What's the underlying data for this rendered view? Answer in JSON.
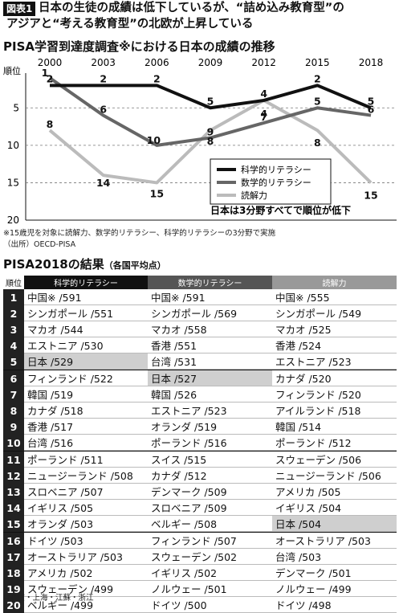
{
  "header": {
    "tag": "図表1",
    "line1": "日本の生徒の成績は低下しているが、“詰め込み教育型”の",
    "line2": "アジアと“考える教育型”の北欧が上昇している"
  },
  "chart_data": {
    "type": "line",
    "title": "PISA学習到達度調査※における日本の成績の推移",
    "ylabel": "順位",
    "ylim": [
      1,
      20
    ],
    "y_reversed": true,
    "yticks": [
      "1",
      "5",
      "10",
      "15",
      "20"
    ],
    "x": [
      "2000",
      "2003",
      "2006",
      "2009",
      "2012",
      "2015",
      "2018"
    ],
    "series": [
      {
        "name": "科学的リテラシー",
        "color": "#111111",
        "values": [
          2,
          2,
          2,
          5,
          4,
          2,
          5
        ],
        "labels": [
          "2",
          "2",
          "2",
          "5",
          "4",
          "2",
          "5"
        ]
      },
      {
        "name": "数学的リテラシー",
        "color": "#666666",
        "values": [
          1,
          6,
          10,
          9,
          7,
          5,
          6
        ],
        "labels": [
          "1",
          "6",
          "10",
          "9",
          "7",
          "5",
          "6"
        ]
      },
      {
        "name": "読解力",
        "color": "#bbbbbb",
        "values": [
          8,
          14,
          15,
          8,
          4,
          8,
          15
        ],
        "labels": [
          "8",
          "14",
          "15",
          "8",
          "4",
          "8",
          "15"
        ]
      }
    ],
    "annotation": "日本は3分野すべてで順位が低下",
    "legend_position": "bottom-right"
  },
  "notes": {
    "n1": "※15歳児を対象に読解力、数学的リテラシー、科学的リテラシーの3分野で実施",
    "n2": "（出所）OECD-PISA"
  },
  "table": {
    "title": "PISA2018の結果",
    "subtitle": "（各国平均点）",
    "col_rank": "順位",
    "col_sci": "科学的リテラシー",
    "col_math": "数学的リテラシー",
    "col_read": "読解力",
    "rows": [
      {
        "rank": "1",
        "sci": "中国※ /591",
        "math": "中国※ /591",
        "read": "中国※ /555"
      },
      {
        "rank": "2",
        "sci": "シンガポール /551",
        "math": "シンガポール /569",
        "read": "シンガポール /549"
      },
      {
        "rank": "3",
        "sci": "マカオ /544",
        "math": "マカオ /558",
        "read": "マカオ /525"
      },
      {
        "rank": "4",
        "sci": "エストニア /530",
        "math": "香港 /551",
        "read": "香港 /524"
      },
      {
        "rank": "5",
        "sci": "日本 /529",
        "math": "台湾 /531",
        "read": "エストニア /523"
      },
      {
        "rank": "6",
        "sci": "フィンランド /522",
        "math": "日本 /527",
        "read": "カナダ /520"
      },
      {
        "rank": "7",
        "sci": "韓国 /519",
        "math": "韓国 /526",
        "read": "フィンランド /520"
      },
      {
        "rank": "8",
        "sci": "カナダ /518",
        "math": "エストニア /523",
        "read": "アイルランド /518"
      },
      {
        "rank": "9",
        "sci": "香港 /517",
        "math": "オランダ /519",
        "read": "韓国 /514"
      },
      {
        "rank": "10",
        "sci": "台湾 /516",
        "math": "ポーランド /516",
        "read": "ポーランド /512"
      },
      {
        "rank": "11",
        "sci": "ポーランド /511",
        "math": "スイス /515",
        "read": "スウェーデン /506"
      },
      {
        "rank": "12",
        "sci": "ニュージーランド /508",
        "math": "カナダ /512",
        "read": "ニュージーランド /506"
      },
      {
        "rank": "13",
        "sci": "スロベニア /507",
        "math": "デンマーク /509",
        "read": "アメリカ /505"
      },
      {
        "rank": "14",
        "sci": "イギリス /505",
        "math": "スロベニア /509",
        "read": "イギリス /504"
      },
      {
        "rank": "15",
        "sci": "オランダ /503",
        "math": "ベルギー /508",
        "read": "日本 /504"
      },
      {
        "rank": "16",
        "sci": "ドイツ /503",
        "math": "フィンランド /507",
        "read": "オーストラリア /503"
      },
      {
        "rank": "17",
        "sci": "オーストラリア /503",
        "math": "スウェーデン /502",
        "read": "台湾 /503"
      },
      {
        "rank": "18",
        "sci": "アメリカ /502",
        "math": "イギリス /502",
        "read": "デンマーク /501"
      },
      {
        "rank": "19",
        "sci": "スウェーデン /499",
        "math": "ノルウェー /501",
        "read": "ノルウェー /499"
      },
      {
        "rank": "20",
        "sci": "ベルギー /499",
        "math": "ドイツ /500",
        "read": "ドイツ /498"
      }
    ],
    "japan_highlight": [
      {
        "row": "5",
        "col": "sci"
      },
      {
        "row": "6",
        "col": "math"
      },
      {
        "row": "15",
        "col": "read"
      }
    ],
    "footnote": "※北京・上海・江蘇・浙江"
  }
}
